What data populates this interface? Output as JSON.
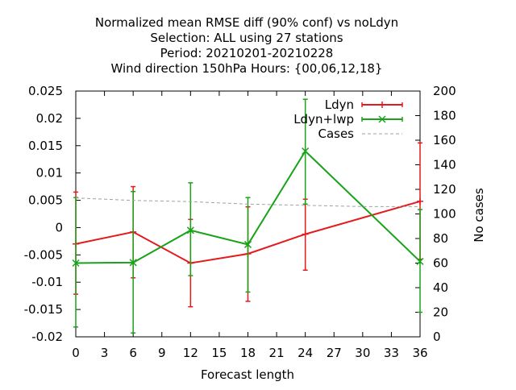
{
  "chart_data": {
    "type": "line",
    "title_lines": [
      "Normalized mean RMSE diff (90% conf) vs noLdyn",
      "Selection: ALL using    27 stations",
      "Period: 20210201-20210228",
      "Wind direction 150hPa   Hours: {00,06,12,18}"
    ],
    "xlabel": "Forecast length",
    "ylabel": "",
    "y2label": "No cases",
    "xlim": [
      0,
      36
    ],
    "ylim": [
      -0.02,
      0.025
    ],
    "y2lim": [
      0,
      200
    ],
    "xticks": [
      0,
      3,
      6,
      9,
      12,
      15,
      18,
      21,
      24,
      27,
      30,
      33,
      36
    ],
    "yticks": [
      -0.02,
      -0.015,
      -0.01,
      -0.005,
      0,
      0.005,
      0.01,
      0.015,
      0.02,
      0.025
    ],
    "ytick_labels": [
      "-0.02",
      "-0.015",
      "-0.01",
      "-0.005",
      "0",
      "0.005",
      "0.01",
      "0.015",
      "0.02",
      "0.025"
    ],
    "y2ticks": [
      0,
      20,
      40,
      60,
      80,
      100,
      120,
      140,
      160,
      180,
      200
    ],
    "grid": false,
    "legend_position": "top-right",
    "series": [
      {
        "name": "Ldyn",
        "color": "#e41a1c",
        "marker": "plus",
        "x": [
          0,
          6,
          12,
          18,
          24,
          36
        ],
        "y": [
          -0.003,
          -0.0008,
          -0.0065,
          -0.0048,
          -0.0012,
          0.0048
        ],
        "err_low": [
          -0.0122,
          -0.0092,
          -0.0145,
          -0.0135,
          -0.0078,
          -0.0058
        ],
        "err_high": [
          0.0065,
          0.0075,
          0.0015,
          0.0038,
          0.0052,
          0.0155
        ]
      },
      {
        "name": "Ldyn+lwp",
        "color": "#1aa31a",
        "marker": "x",
        "x": [
          0,
          6,
          12,
          18,
          24,
          36
        ],
        "y": [
          -0.0065,
          -0.0064,
          -0.0005,
          -0.0031,
          0.014,
          -0.0062
        ],
        "err_low": [
          -0.0182,
          -0.0193,
          -0.0088,
          -0.0118,
          0.0043,
          -0.0155
        ],
        "err_high": [
          0.0055,
          0.0066,
          0.0082,
          0.0055,
          0.0235,
          0.0033
        ]
      },
      {
        "name": "Cases",
        "color": "#a0a0a0",
        "axis": "y2",
        "style": "dashed",
        "x": [
          0,
          6,
          12,
          18,
          24,
          30,
          36
        ],
        "y": [
          113,
          111,
          110,
          108,
          107,
          106,
          106
        ]
      }
    ]
  }
}
